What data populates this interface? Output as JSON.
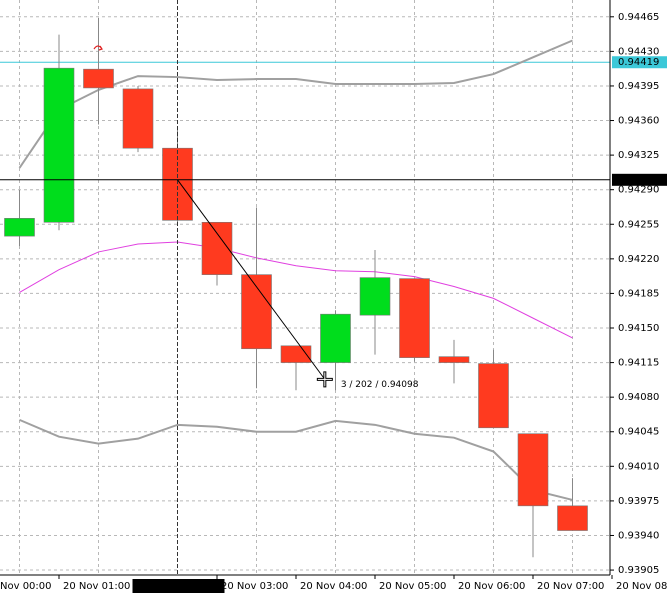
{
  "chart_data": {
    "type": "candlestick",
    "categories": [
      "Nov 00:00",
      null,
      "20 Nov 01:00",
      null,
      null,
      null,
      "20 Nov 03:00",
      null,
      "20 Nov 04:00",
      null,
      "20 Nov 05:00",
      null,
      "20 Nov 06:00",
      null,
      "20 Nov 07:00",
      null,
      "20 Nov 08"
    ],
    "open": [
      null,
      0.94243,
      0.94257,
      0.94412,
      0.94392,
      0.94332,
      0.94257,
      0.94204,
      0.94132,
      0.94115,
      0.94163,
      0.942,
      0.94121,
      0.94114,
      0.94043,
      0.9397,
      null
    ],
    "high": [
      null,
      0.9429,
      0.94447,
      0.94464,
      0.94395,
      0.94351,
      0.94257,
      0.94272,
      0.94132,
      0.94168,
      0.94229,
      0.942,
      0.94138,
      0.94128,
      0.94043,
      0.93998,
      null
    ],
    "low": [
      null,
      0.94233,
      0.94249,
      0.94356,
      0.94328,
      0.94254,
      0.94193,
      0.94089,
      0.94087,
      0.94087,
      0.94123,
      0.94116,
      0.94094,
      0.94049,
      0.93918,
      0.93945,
      null
    ],
    "close": [
      null,
      0.94261,
      0.94413,
      0.94393,
      0.94332,
      0.94259,
      0.94204,
      0.94129,
      0.94115,
      0.94164,
      0.94201,
      0.9412,
      0.94115,
      0.94049,
      0.9397,
      0.93945,
      null
    ],
    "bull_color": "#00dd1c",
    "bear_color": "#ff3a1f",
    "series": [
      {
        "color": "#a0a0a0",
        "values": [
          null,
          0.94312,
          0.94371,
          0.94391,
          0.94405,
          0.94404,
          0.94401,
          0.94402,
          0.94402,
          0.94397,
          0.94397,
          0.94397,
          0.94398,
          0.94407,
          0.94424,
          0.94441,
          null
        ]
      },
      {
        "color": "#e040e0",
        "values": [
          null,
          0.94186,
          0.94209,
          0.94227,
          0.94235,
          0.94237,
          0.94231,
          0.94221,
          0.94213,
          0.94208,
          0.94207,
          0.94202,
          0.94192,
          0.9418,
          0.9416,
          0.9414,
          null
        ]
      },
      {
        "color": "#a0a0a0",
        "values": [
          null,
          0.94057,
          0.9404,
          0.94033,
          0.94038,
          0.94052,
          0.9405,
          0.94045,
          0.94045,
          0.94056,
          0.94052,
          0.94043,
          0.94039,
          0.94025,
          0.93986,
          0.93976,
          null
        ]
      }
    ],
    "ylim": [
      0.939,
      0.94482
    ],
    "yticks": [
      0.94465,
      {
        "value": 0.9443,
        "label": "0.94430"
      },
      0.94395,
      {
        "value": 0.9436,
        "label": "0.94360"
      },
      0.94325,
      {
        "value": 0.9429,
        "label": "0.94290"
      },
      0.94255,
      {
        "value": 0.9422,
        "label": "0.94220"
      },
      0.94185,
      {
        "value": 0.9415,
        "label": "0.94150"
      },
      0.94115,
      {
        "value": 0.9408,
        "label": "0.94080"
      },
      0.94045,
      {
        "value": 0.9401,
        "label": "0.94010"
      },
      0.93975,
      {
        "value": 0.9394,
        "label": "0.93940"
      },
      0.93905
    ],
    "grid": true,
    "bid": {
      "value": 0.94419,
      "color": "#3cc8d8"
    },
    "crosshair": {
      "x": 5,
      "price": {
        "value": 0.943,
        "label": "0.94300"
      },
      "time_label": "2013.11.20 2:30"
    },
    "ruler": {
      "x1": 5,
      "y1": 0.943,
      "x2": 8.73,
      "y2": 0.94098,
      "label": "3 / 202 / 0.94098"
    }
  }
}
